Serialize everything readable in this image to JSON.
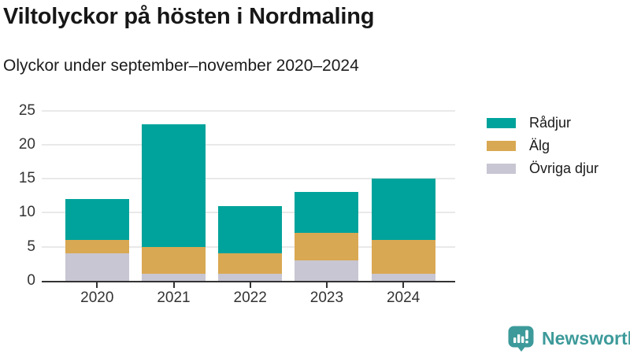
{
  "chart_data": {
    "type": "bar",
    "stacked": true,
    "title": "Viltolyckor på hösten i Nordmaling",
    "subtitle": "Olyckor under september–november 2020–2024",
    "categories": [
      "2020",
      "2021",
      "2022",
      "2023",
      "2024"
    ],
    "series": [
      {
        "name": "Rådjur",
        "color": "#00a39b",
        "values": [
          6,
          18,
          7,
          6,
          9
        ]
      },
      {
        "name": "Älg",
        "color": "#d9a852",
        "values": [
          2,
          4,
          3,
          4,
          5
        ]
      },
      {
        "name": "Övriga djur",
        "color": "#c8c6d2",
        "values": [
          4,
          1,
          1,
          3,
          1
        ]
      }
    ],
    "stack_order_bottom_to_top": [
      "Övriga djur",
      "Älg",
      "Rådjur"
    ],
    "totals": [
      12,
      23,
      11,
      13,
      15
    ],
    "xlabel": "",
    "ylabel": "",
    "ylim": [
      0,
      25
    ],
    "yticks": [
      0,
      5,
      10,
      15,
      20,
      25
    ],
    "grid": true,
    "legend_position": "right"
  },
  "branding": {
    "logo_text": "Newsworthy",
    "logo_color": "#3d9a9a",
    "logo_icon": "bar-chart-speech-bubble"
  },
  "colors": {
    "axis": "#333333",
    "grid": "#e9e9e9",
    "text": "#1a1a1a"
  }
}
